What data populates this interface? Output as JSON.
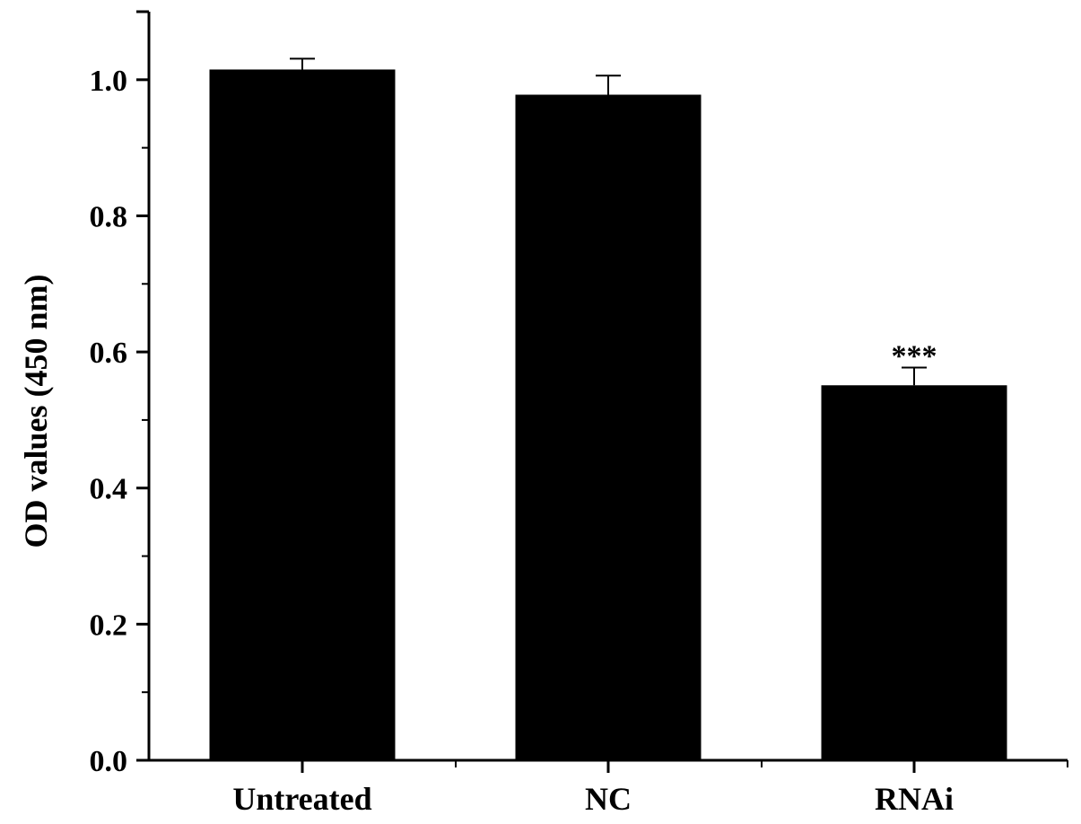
{
  "chart_data": {
    "type": "bar",
    "title": "",
    "xlabel": "",
    "ylabel": "OD values (450 nm)",
    "categories": [
      "Untreated",
      "NC",
      "RNAi"
    ],
    "values": [
      1.015,
      0.978,
      0.551
    ],
    "errors": [
      0.016,
      0.028,
      0.026
    ],
    "annotations": [
      "",
      "",
      "***"
    ],
    "ylim": [
      0,
      1.1
    ],
    "yticks": [
      0.0,
      0.2,
      0.4,
      0.6,
      0.8,
      1.0
    ],
    "ytick_labels": [
      "0.0",
      "0.2",
      "0.4",
      "0.6",
      "0.8",
      "1.0"
    ],
    "grid": false,
    "legend": "none",
    "bar_color": "#000000"
  }
}
